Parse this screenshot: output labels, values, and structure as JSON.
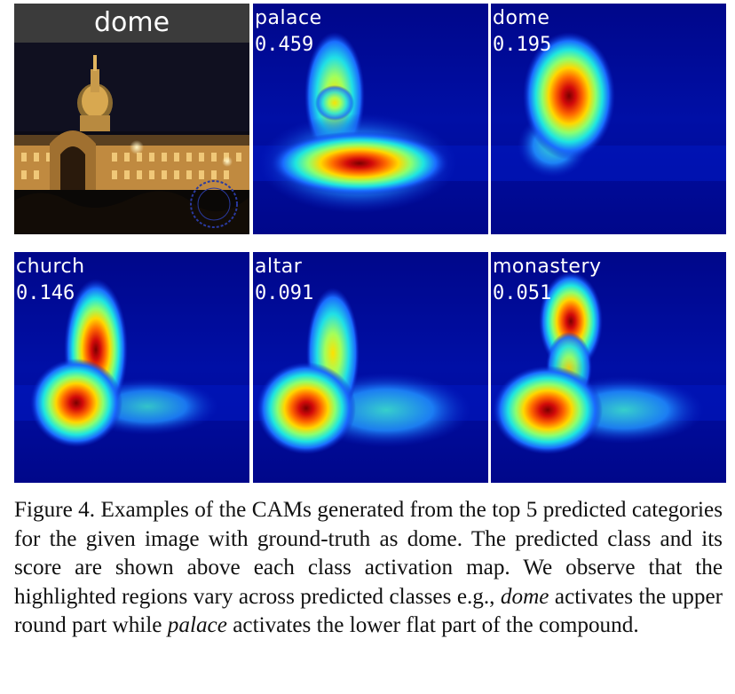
{
  "figure": {
    "input": {
      "title": "dome"
    },
    "cams": [
      {
        "label": "palace",
        "score": "0.459"
      },
      {
        "label": "dome",
        "score": "0.195"
      },
      {
        "label": "church",
        "score": "0.146"
      },
      {
        "label": "altar",
        "score": "0.091"
      },
      {
        "label": "monastery",
        "score": "0.051"
      }
    ],
    "caption": {
      "lead": "Figure 4. Examples of the CAMs generated from the top 5 predicted categories for the given image with ground-truth as dome. The predicted class and its score are shown above each class activation map. We observe that the highlighted regions vary across predicted classes e.g., ",
      "term1": "dome",
      "mid": " activates the upper round part while ",
      "term2": "palace",
      "tail": " activates the lower flat part of the compound."
    }
  },
  "colors": {
    "cam_background": "#000a8c",
    "cam_peak": "#b40000",
    "night_sky": "#0a0a14",
    "building_lights": "#e8b058"
  }
}
